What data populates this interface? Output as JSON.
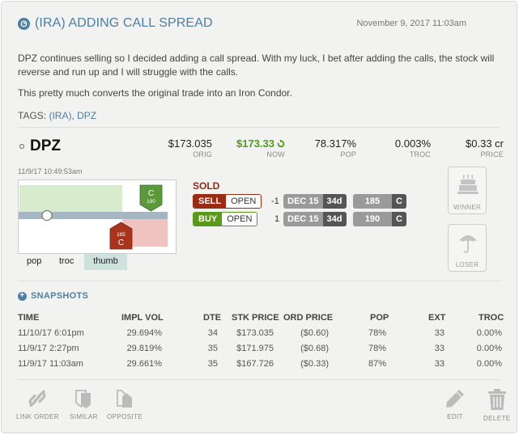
{
  "header": {
    "title": "(IRA) ADDING CALL SPREAD",
    "date": "November 9, 2017 11:03am"
  },
  "body": {
    "paragraph1": "DPZ continues selling so I decided adding a call spread. With my luck, I bet after adding the calls, the stock will reverse and run up and I will struggle with the calls.",
    "paragraph2": "This pretty much converts the original trade into an Iron Condor.",
    "tags_label": "TAGS:",
    "tags": [
      "(IRA)",
      "DPZ"
    ]
  },
  "position": {
    "symbol": "DPZ",
    "timestamp": "11/9/17 10:49:53am",
    "stats": [
      {
        "value": "$173.035",
        "label": "ORIG"
      },
      {
        "value": "$173.33",
        "label": "NOW"
      },
      {
        "value": "78.317%",
        "label": "POP"
      },
      {
        "value": "0.003%",
        "label": "TROC"
      },
      {
        "value": "$0.33 cr",
        "label": "PRICE"
      }
    ],
    "chart": {
      "call_short_strike": "185",
      "call_long_strike": "190",
      "marker_short": "C",
      "marker_long": "C",
      "tabs": [
        "pop",
        "troc",
        "thumb"
      ],
      "active_tab": "thumb"
    },
    "order_status": "SOLD",
    "legs": [
      {
        "side": "SELL",
        "open": "OPEN",
        "qty": "-1",
        "exp": "DEC 15",
        "dte": "34d",
        "strike": "185",
        "type": "C"
      },
      {
        "side": "BUY",
        "open": "OPEN",
        "qty": "1",
        "exp": "DEC 15",
        "dte": "34d",
        "strike": "190",
        "type": "C"
      }
    ],
    "winner_label": "WINNER",
    "loser_label": "LOSER"
  },
  "snapshots": {
    "title": "SNAPSHOTS",
    "columns": [
      "TIME",
      "IMPL VOL",
      "DTE",
      "STK PRICE",
      "ORD PRICE",
      "POP",
      "EXT",
      "TROC"
    ],
    "rows": [
      [
        "11/10/17 6:01pm",
        "29.694%",
        "34",
        "$173.035",
        "($0.60)",
        "78%",
        "33",
        "0.00%"
      ],
      [
        "11/9/17 2:27pm",
        "29.819%",
        "35",
        "$171.975",
        "($0.68)",
        "78%",
        "33",
        "0.00%"
      ],
      [
        "11/9/17 11:03am",
        "29.661%",
        "35",
        "$167.726",
        "($0.33)",
        "87%",
        "33",
        "0.00%"
      ]
    ]
  },
  "footer": {
    "link_order": "LINK ORDER",
    "similar": "SIMILAR",
    "opposite": "OPPOSITE",
    "edit": "EDIT",
    "delete": "DELETE"
  },
  "colors": {
    "accent": "#4d7fa3",
    "now_green": "#4f9a1f",
    "sell_red": "#9b2b12",
    "buy_green": "#5a9a1a"
  }
}
